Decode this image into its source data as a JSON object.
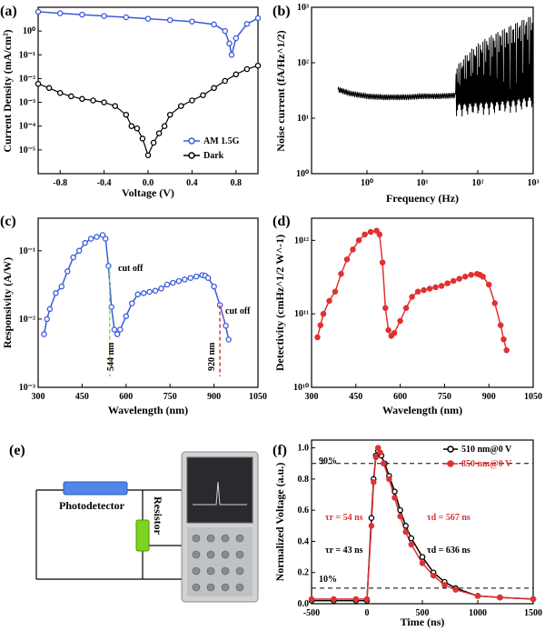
{
  "panels": {
    "a": {
      "label": "(a)"
    },
    "b": {
      "label": "(b)"
    },
    "c": {
      "label": "(c)"
    },
    "d": {
      "label": "(d)"
    },
    "e": {
      "label": "(e)"
    },
    "f": {
      "label": "(f)"
    }
  },
  "schematic": {
    "photodetector_label": "Photodetector",
    "resistor_label": "Resistor"
  },
  "chart_data": [
    {
      "id": "a",
      "type": "line",
      "y_scale": "log",
      "xlabel": "Voltage (V)",
      "ylabel": "Current Density (mA/cm²)",
      "xlim": [
        -1.0,
        1.0
      ],
      "ylim": [
        1e-06,
        10
      ],
      "x_ticks": [
        -0.8,
        -0.4,
        0.0,
        0.4,
        0.8
      ],
      "x_tick_labels": [
        "-0.8",
        "-0.4",
        "0.0",
        "0.4",
        "0.8"
      ],
      "y_tick_labels": [
        "10⁻⁵",
        "10⁻⁴",
        "10⁻³",
        "10⁻²",
        "10⁻¹",
        "10⁰"
      ],
      "legend_position": "bottom-right",
      "series": [
        {
          "name": "AM 1.5G",
          "color": "#3b5bdb",
          "marker": "circle",
          "x": [
            -1.0,
            -0.8,
            -0.6,
            -0.4,
            -0.2,
            0.0,
            0.2,
            0.4,
            0.6,
            0.7,
            0.74,
            0.76,
            0.8,
            0.9,
            1.0
          ],
          "y": [
            6.5,
            5.6,
            4.9,
            4.3,
            3.8,
            3.3,
            2.9,
            2.5,
            1.9,
            1.0,
            0.3,
            0.1,
            0.5,
            2.0,
            3.5
          ]
        },
        {
          "name": "Dark",
          "color": "#000000",
          "marker": "circle",
          "x": [
            -1.0,
            -0.9,
            -0.8,
            -0.7,
            -0.6,
            -0.5,
            -0.4,
            -0.3,
            -0.2,
            -0.15,
            -0.1,
            -0.05,
            0.0,
            0.05,
            0.1,
            0.15,
            0.2,
            0.3,
            0.4,
            0.5,
            0.6,
            0.7,
            0.8,
            0.9,
            1.0
          ],
          "y": [
            0.006,
            0.004,
            0.0025,
            0.0018,
            0.0014,
            0.0012,
            0.001,
            0.0007,
            0.0003,
            0.0001,
            8e-05,
            3e-05,
            6e-06,
            2e-05,
            5e-05,
            0.0001,
            0.0003,
            0.0007,
            0.0012,
            0.002,
            0.004,
            0.008,
            0.015,
            0.025,
            0.035
          ]
        }
      ]
    },
    {
      "id": "b",
      "type": "line",
      "x_scale": "log",
      "y_scale": "log",
      "xlabel": "Frequency (Hz)",
      "ylabel": "Noise current (fA/Hz^1/2)",
      "xlim": [
        0.1,
        1000
      ],
      "ylim": [
        1,
        1000
      ],
      "x_tick_labels": [
        "10⁰",
        "10¹",
        "10²",
        "10³"
      ],
      "y_tick_labels": [
        "10⁰",
        "10¹",
        "10²",
        "10³"
      ],
      "series": [
        {
          "name": "",
          "color": "#000000",
          "x": [
            0.3,
            0.5,
            1,
            2,
            5,
            10,
            20,
            40,
            60,
            100,
            200,
            400,
            600,
            1000
          ],
          "y": [
            33,
            28,
            25,
            24,
            24,
            25,
            25,
            26,
            26,
            27,
            28,
            30,
            32,
            35
          ]
        }
      ]
    },
    {
      "id": "c",
      "type": "line",
      "y_scale": "log",
      "xlabel": "Wavelength (nm)",
      "ylabel": "Responsivity (A/W)",
      "xlim": [
        300,
        1050
      ],
      "ylim": [
        0.001,
        0.3
      ],
      "x_ticks": [
        300,
        450,
        600,
        750,
        900,
        1050
      ],
      "x_tick_labels": [
        "300",
        "450",
        "600",
        "750",
        "900",
        "1050"
      ],
      "y_tick_labels": [
        "10⁻³",
        "10⁻²",
        "10⁻¹"
      ],
      "series": [
        {
          "name": "",
          "color": "#3b5bdb",
          "marker": "circle",
          "x": [
            320,
            330,
            340,
            360,
            380,
            400,
            420,
            440,
            460,
            480,
            500,
            520,
            530,
            540,
            550,
            560,
            570,
            580,
            600,
            620,
            640,
            660,
            680,
            700,
            720,
            740,
            760,
            780,
            800,
            820,
            840,
            860,
            870,
            880,
            900,
            920,
            940,
            950
          ],
          "y": [
            0.006,
            0.01,
            0.014,
            0.024,
            0.03,
            0.05,
            0.08,
            0.1,
            0.13,
            0.15,
            0.16,
            0.17,
            0.15,
            0.06,
            0.015,
            0.007,
            0.006,
            0.007,
            0.011,
            0.017,
            0.023,
            0.024,
            0.025,
            0.026,
            0.028,
            0.032,
            0.034,
            0.036,
            0.038,
            0.04,
            0.042,
            0.044,
            0.043,
            0.04,
            0.03,
            0.016,
            0.008,
            0.005
          ]
        }
      ],
      "annotations": [
        {
          "text": "cut off",
          "x": 548,
          "y": 0.065
        },
        {
          "text": "cut off",
          "x": 935,
          "y": 0.012
        },
        {
          "text": "544 nm",
          "x": 544,
          "color": "#7cd64b"
        },
        {
          "text": "920 nm",
          "x": 920,
          "color": "#e03131"
        }
      ]
    },
    {
      "id": "d",
      "type": "line",
      "y_scale": "log",
      "xlabel": "Wavelength (nm)",
      "ylabel": "Detectivity (cmHz^1/2 W^-1)",
      "xlim": [
        300,
        1050
      ],
      "ylim": [
        10000000000.0,
        2000000000000.0
      ],
      "x_ticks": [
        300,
        450,
        600,
        750,
        900,
        1050
      ],
      "x_tick_labels": [
        "300",
        "450",
        "600",
        "750",
        "900",
        "1050"
      ],
      "y_tick_labels": [
        "10¹⁰",
        "10¹¹",
        "10¹²"
      ],
      "series": [
        {
          "name": "",
          "color": "#e03131",
          "marker": "circle",
          "x": [
            320,
            330,
            340,
            360,
            380,
            400,
            420,
            440,
            460,
            480,
            500,
            520,
            530,
            540,
            550,
            560,
            570,
            580,
            600,
            620,
            640,
            660,
            680,
            700,
            720,
            740,
            760,
            780,
            800,
            820,
            840,
            860,
            870,
            880,
            900,
            920,
            940,
            950,
            960
          ],
          "y": [
            48000000000.0,
            70000000000.0,
            100000000000.0,
            150000000000.0,
            200000000000.0,
            350000000000.0,
            550000000000.0,
            750000000000.0,
            1000000000000.0,
            1200000000000.0,
            1300000000000.0,
            1350000000000.0,
            1200000000000.0,
            500000000000.0,
            120000000000.0,
            60000000000.0,
            50000000000.0,
            55000000000.0,
            80000000000.0,
            120000000000.0,
            170000000000.0,
            200000000000.0,
            210000000000.0,
            220000000000.0,
            230000000000.0,
            240000000000.0,
            260000000000.0,
            280000000000.0,
            300000000000.0,
            320000000000.0,
            340000000000.0,
            350000000000.0,
            340000000000.0,
            320000000000.0,
            250000000000.0,
            140000000000.0,
            70000000000.0,
            45000000000.0,
            32000000000.0
          ]
        }
      ]
    },
    {
      "id": "f",
      "type": "line",
      "xlabel": "Time (ns)",
      "ylabel": "Normalized Voltage (a.u.)",
      "xlim": [
        -500,
        1500
      ],
      "ylim": [
        0,
        1.05
      ],
      "x_ticks": [
        -500,
        0,
        500,
        1000,
        1500
      ],
      "x_tick_labels": [
        "-500",
        "0",
        "500",
        "1000",
        "1500"
      ],
      "y_ticks": [
        0.0,
        0.2,
        0.4,
        0.6,
        0.8,
        1.0
      ],
      "y_tick_labels": [
        "0.0",
        "0.2",
        "0.4",
        "0.6",
        "0.8",
        "1.0"
      ],
      "reference_lines": [
        {
          "y": 0.9,
          "label": "90%"
        },
        {
          "y": 0.1,
          "label": "10%"
        }
      ],
      "legend_position": "top-right",
      "series": [
        {
          "name": "510 nm@0 V",
          "color": "#000000",
          "marker": "circle",
          "x": [
            -500,
            -300,
            -100,
            0,
            40,
            60,
            80,
            100,
            130,
            160,
            200,
            250,
            300,
            350,
            400,
            500,
            600,
            700,
            800,
            1000,
            1200,
            1500
          ],
          "y": [
            0.02,
            0.02,
            0.02,
            0.02,
            0.55,
            0.8,
            0.95,
            0.98,
            0.95,
            0.9,
            0.82,
            0.72,
            0.6,
            0.5,
            0.42,
            0.3,
            0.2,
            0.14,
            0.1,
            0.05,
            0.04,
            0.03
          ]
        },
        {
          "name": "850 nm@0 V",
          "color": "#e03131",
          "marker": "circle",
          "x": [
            -500,
            -300,
            -100,
            0,
            40,
            60,
            80,
            100,
            120,
            150,
            200,
            250,
            300,
            350,
            400,
            500,
            600,
            700,
            800,
            1000,
            1200,
            1500
          ],
          "y": [
            0.03,
            0.03,
            0.03,
            0.03,
            0.5,
            0.78,
            0.94,
            1.0,
            0.97,
            0.9,
            0.8,
            0.68,
            0.56,
            0.46,
            0.38,
            0.26,
            0.18,
            0.12,
            0.09,
            0.05,
            0.04,
            0.03
          ]
        }
      ],
      "annotations": [
        {
          "text": "τr = 54 ns",
          "color": "#e03131"
        },
        {
          "text": "τd = 567 ns",
          "color": "#e03131"
        },
        {
          "text": "τr = 43 ns",
          "color": "#000000"
        },
        {
          "text": "τd = 636 ns",
          "color": "#000000"
        }
      ]
    }
  ]
}
